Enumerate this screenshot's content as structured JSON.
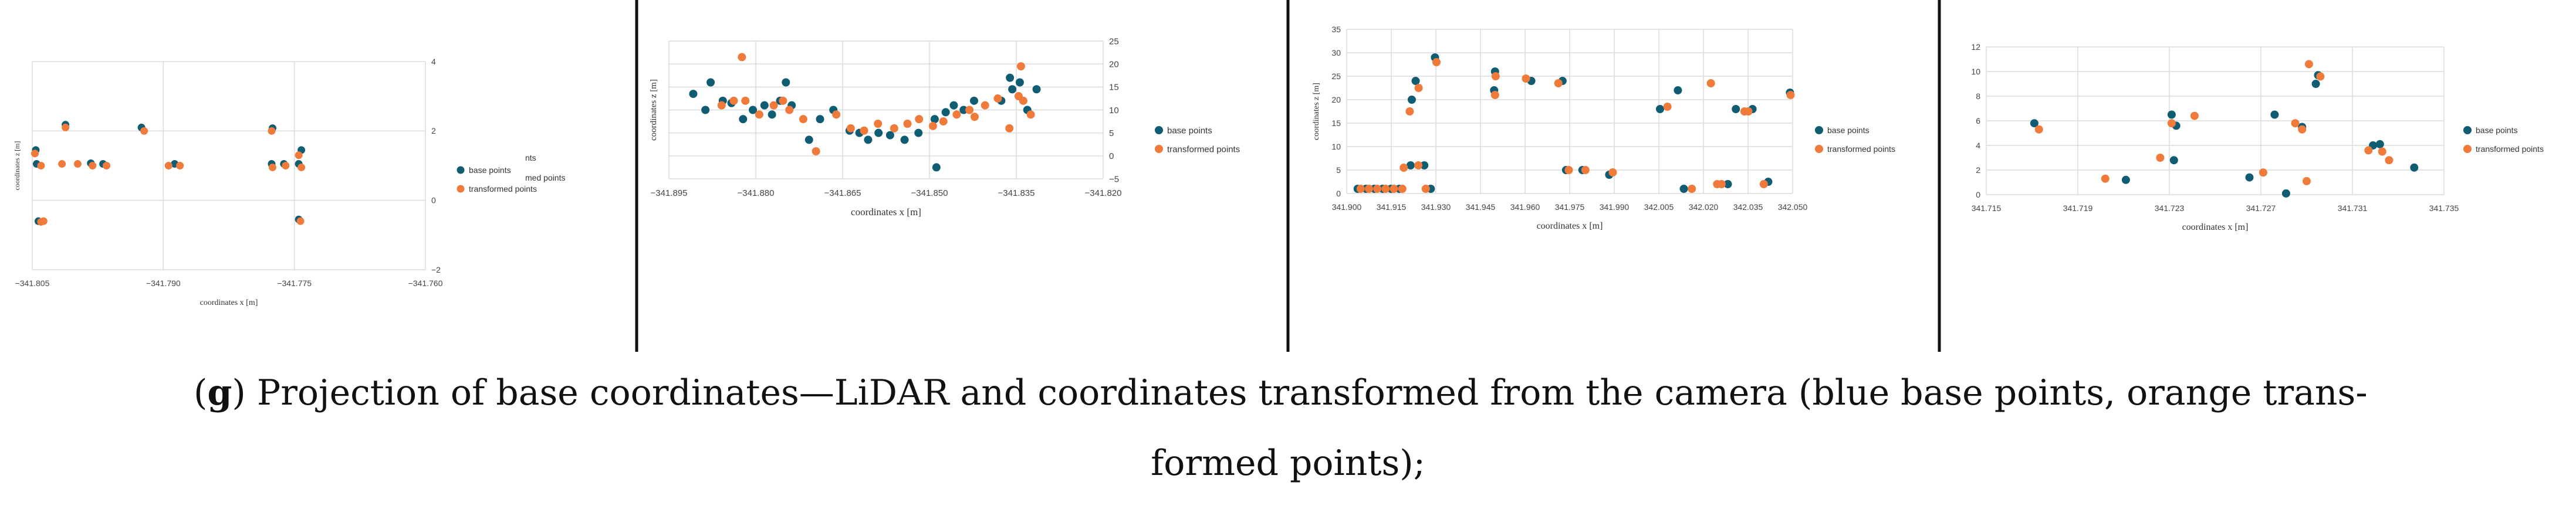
{
  "caption": {
    "letter": "g",
    "open_paren": "(",
    "line1_rest": ") Projection of base coordinates—LiDAR and coordinates transformed from the camera (blue base points, orange trans-",
    "line2": "formed points);"
  },
  "colors": {
    "base": "#0f5c73",
    "transformed": "#f07a3a",
    "grid": "#dcdcdc",
    "divider": "#111111"
  },
  "chart_data": [
    {
      "type": "scatter",
      "xlabel": "coordinates x [m]",
      "ylabel": "coordinates z [m]",
      "xlim": [
        -341.805,
        -341.76
      ],
      "ylim": [
        -2,
        4
      ],
      "x_ticks": [
        -341.805,
        -341.79,
        -341.775,
        -341.76
      ],
      "x_tick_labels": [
        "−341.805",
        "−341.790",
        "−341.775",
        "−341.760"
      ],
      "y_ticks": [
        -2,
        0,
        2,
        4
      ],
      "y_tick_labels": [
        "−2",
        "0",
        "2",
        "4"
      ],
      "y_axis_side": "right",
      "legend_extra": [
        "nts",
        "med points"
      ],
      "series": [
        {
          "name": "base points",
          "points": [
            [
              -341.8046,
              1.45
            ],
            [
              -341.8045,
              1.05
            ],
            [
              -341.8043,
              -0.6
            ],
            [
              -341.8012,
              2.18
            ],
            [
              -341.7983,
              1.07
            ],
            [
              -341.7969,
              1.05
            ],
            [
              -341.7925,
              2.1
            ],
            [
              -341.7887,
              1.05
            ],
            [
              -341.7775,
              2.08
            ],
            [
              -341.7776,
              1.05
            ],
            [
              -341.7762,
              1.05
            ],
            [
              -341.7742,
              1.45
            ],
            [
              -341.7745,
              1.05
            ],
            [
              -341.7745,
              -0.55
            ]
          ]
        },
        {
          "name": "transformed points",
          "points": [
            [
              -341.8047,
              1.35
            ],
            [
              -341.804,
              1.0
            ],
            [
              -341.804,
              -0.62
            ],
            [
              -341.8037,
              -0.6
            ],
            [
              -341.8016,
              1.05
            ],
            [
              -341.8012,
              2.1
            ],
            [
              -341.7998,
              1.05
            ],
            [
              -341.7981,
              1.0
            ],
            [
              -341.7965,
              1.0
            ],
            [
              -341.7922,
              2.0
            ],
            [
              -341.7894,
              1.0
            ],
            [
              -341.7881,
              1.0
            ],
            [
              -341.7776,
              2.0
            ],
            [
              -341.7775,
              0.95
            ],
            [
              -341.776,
              1.0
            ],
            [
              -341.7745,
              1.3
            ],
            [
              -341.7742,
              0.95
            ],
            [
              -341.7743,
              -0.6
            ]
          ]
        }
      ]
    },
    {
      "type": "scatter",
      "xlabel": "coordinates x [m]",
      "ylabel": "coordinates z [m]",
      "xlim": [
        -341.895,
        -341.82
      ],
      "ylim": [
        -5,
        25
      ],
      "x_ticks": [
        -341.895,
        -341.88,
        -341.865,
        -341.85,
        -341.835,
        -341.82
      ],
      "x_tick_labels": [
        "−341.895",
        "−341.880",
        "−341.865",
        "−341.850",
        "−341.835",
        "−341.820"
      ],
      "y_ticks": [
        -5,
        0,
        5,
        10,
        15,
        20,
        25
      ],
      "y_tick_labels": [
        "−5",
        "0",
        "5",
        "10",
        "15",
        "20",
        "25"
      ],
      "y_axis_side": "right",
      "series": [
        {
          "name": "base points",
          "points": [
            [
              -341.8908,
              13.5
            ],
            [
              -341.8887,
              10
            ],
            [
              -341.8878,
              16
            ],
            [
              -341.8857,
              12
            ],
            [
              -341.8842,
              11.5
            ],
            [
              -341.8822,
              8
            ],
            [
              -341.8805,
              10
            ],
            [
              -341.8785,
              11
            ],
            [
              -341.8772,
              9
            ],
            [
              -341.8758,
              12
            ],
            [
              -341.8748,
              16
            ],
            [
              -341.8738,
              11
            ],
            [
              -341.8708,
              3.5
            ],
            [
              -341.8689,
              8
            ],
            [
              -341.8666,
              10
            ],
            [
              -341.8638,
              5.5
            ],
            [
              -341.8621,
              5
            ],
            [
              -341.8606,
              3.5
            ],
            [
              -341.8588,
              5
            ],
            [
              -341.8568,
              4.5
            ],
            [
              -341.8543,
              3.5
            ],
            [
              -341.8519,
              5
            ],
            [
              -341.8491,
              8
            ],
            [
              -341.8472,
              9.5
            ],
            [
              -341.8488,
              -2.5
            ],
            [
              -341.8458,
              11
            ],
            [
              -341.8441,
              10
            ],
            [
              -341.8423,
              12
            ],
            [
              -341.8376,
              12
            ],
            [
              -341.8361,
              17
            ],
            [
              -341.8357,
              14.5
            ],
            [
              -341.8344,
              16
            ],
            [
              -341.8331,
              10
            ],
            [
              -341.8315,
              14.5
            ]
          ]
        },
        {
          "name": "transformed points",
          "points": [
            [
              -341.8859,
              11
            ],
            [
              -341.8838,
              12
            ],
            [
              -341.8824,
              21.5
            ],
            [
              -341.8818,
              12
            ],
            [
              -341.8794,
              9
            ],
            [
              -341.8769,
              11
            ],
            [
              -341.8753,
              12
            ],
            [
              -341.8742,
              10
            ],
            [
              -341.8718,
              8
            ],
            [
              -341.8696,
              1
            ],
            [
              -341.8661,
              9
            ],
            [
              -341.8636,
              6
            ],
            [
              -341.8613,
              5.5
            ],
            [
              -341.8589,
              7
            ],
            [
              -341.8561,
              6
            ],
            [
              -341.8538,
              7
            ],
            [
              -341.8518,
              8
            ],
            [
              -341.8494,
              6.5
            ],
            [
              -341.8476,
              7.5
            ],
            [
              -341.8453,
              9
            ],
            [
              -341.8431,
              10
            ],
            [
              -341.8422,
              8.5
            ],
            [
              -341.8404,
              11
            ],
            [
              -341.8382,
              12.5
            ],
            [
              -341.8362,
              6
            ],
            [
              -341.8346,
              13
            ],
            [
              -341.8342,
              19.5
            ],
            [
              -341.8338,
              12
            ],
            [
              -341.8325,
              9
            ]
          ]
        }
      ]
    },
    {
      "type": "scatter",
      "xlabel": "coordinates x [m]",
      "ylabel": "coordinates z [m]",
      "xlim": [
        341.9,
        342.05
      ],
      "ylim": [
        0,
        35
      ],
      "x_ticks": [
        341.9,
        341.915,
        341.93,
        341.945,
        341.96,
        341.975,
        341.99,
        342.005,
        342.02,
        342.035,
        342.05
      ],
      "x_tick_labels": [
        "341.900",
        "341.915",
        "341.930",
        "341.945",
        "341.960",
        "341.975",
        "341.990",
        "342.005",
        "342.020",
        "342.035",
        "342.050"
      ],
      "y_ticks": [
        0,
        5,
        10,
        15,
        20,
        25,
        30,
        35
      ],
      "y_tick_labels": [
        "0",
        "5",
        "10",
        "15",
        "20",
        "25",
        "30",
        "35"
      ],
      "y_axis_side": "left",
      "series": [
        {
          "name": "base points",
          "points": [
            [
              341.9037,
              1
            ],
            [
              341.9065,
              1
            ],
            [
              341.9093,
              1
            ],
            [
              341.9121,
              1
            ],
            [
              341.9149,
              1
            ],
            [
              341.9177,
              1
            ],
            [
              341.9219,
              20
            ],
            [
              341.9232,
              24
            ],
            [
              341.9261,
              6
            ],
            [
              341.9283,
              1
            ],
            [
              341.9297,
              29
            ],
            [
              341.9499,
              26
            ],
            [
              341.9496,
              22
            ],
            [
              341.9621,
              24
            ],
            [
              341.9726,
              24
            ],
            [
              341.9738,
              5
            ],
            [
              341.9883,
              4
            ],
            [
              342.0054,
              18
            ],
            [
              342.0114,
              22
            ],
            [
              342.0134,
              1
            ],
            [
              342.0282,
              2
            ],
            [
              342.0309,
              18
            ],
            [
              342.0365,
              18
            ],
            [
              342.0418,
              2.5
            ],
            [
              342.0491,
              21.5
            ],
            [
              341.9793,
              5
            ],
            [
              341.9215,
              6
            ]
          ]
        },
        {
          "name": "transformed points",
          "points": [
            [
              341.9047,
              1
            ],
            [
              341.9075,
              1
            ],
            [
              341.9103,
              1
            ],
            [
              341.9131,
              1
            ],
            [
              341.9159,
              1
            ],
            [
              341.9187,
              1
            ],
            [
              341.9212,
              17.5
            ],
            [
              341.9242,
              22.5
            ],
            [
              341.9192,
              5.5
            ],
            [
              341.9241,
              6
            ],
            [
              341.9266,
              1
            ],
            [
              341.9302,
              28
            ],
            [
              341.9501,
              25
            ],
            [
              341.9499,
              21
            ],
            [
              341.9603,
              24.5
            ],
            [
              341.9712,
              23.5
            ],
            [
              341.9747,
              5
            ],
            [
              341.9803,
              5
            ],
            [
              341.9895,
              4.5
            ],
            [
              342.0079,
              18.5
            ],
            [
              342.0161,
              1
            ],
            [
              342.0225,
              23.5
            ],
            [
              342.0246,
              2
            ],
            [
              342.0261,
              2
            ],
            [
              342.0338,
              17.5
            ],
            [
              342.0351,
              17.5
            ],
            [
              342.0403,
              2
            ],
            [
              342.0493,
              21
            ]
          ]
        }
      ]
    },
    {
      "type": "scatter",
      "xlabel": "coordinates x [m]",
      "ylabel": "",
      "xlim": [
        341.715,
        341.735
      ],
      "ylim": [
        0,
        12
      ],
      "x_ticks": [
        341.715,
        341.719,
        341.723,
        341.727,
        341.731,
        341.735
      ],
      "x_tick_labels": [
        "341.715",
        "341.719",
        "341.723",
        "341.727",
        "341.731",
        "341.735"
      ],
      "y_ticks": [
        0,
        2,
        4,
        6,
        8,
        10,
        12
      ],
      "y_tick_labels": [
        "0",
        "2",
        "4",
        "6",
        "8",
        "10",
        "12"
      ],
      "y_axis_side": "left",
      "series": [
        {
          "name": "base points",
          "points": [
            [
              341.7171,
              5.8
            ],
            [
              341.7211,
              1.2
            ],
            [
              341.7231,
              6.5
            ],
            [
              341.7232,
              2.8
            ],
            [
              341.7233,
              5.6
            ],
            [
              341.7265,
              1.4
            ],
            [
              341.7276,
              6.5
            ],
            [
              341.7281,
              0.1
            ],
            [
              341.7288,
              5.5
            ],
            [
              341.7295,
              9.7
            ],
            [
              341.7294,
              9
            ],
            [
              341.7319,
              4
            ],
            [
              341.7322,
              4.1
            ],
            [
              341.7337,
              2.2
            ]
          ]
        },
        {
          "name": "transformed points",
          "points": [
            [
              341.7173,
              5.3
            ],
            [
              341.7202,
              1.3
            ],
            [
              341.7226,
              3
            ],
            [
              341.7231,
              5.8
            ],
            [
              341.7241,
              6.4
            ],
            [
              341.7271,
              1.8
            ],
            [
              341.7285,
              5.8
            ],
            [
              341.7288,
              5.3
            ],
            [
              341.729,
              1.1
            ],
            [
              341.7291,
              10.6
            ],
            [
              341.7296,
              9.6
            ],
            [
              341.7317,
              3.6
            ],
            [
              341.7323,
              3.5
            ],
            [
              341.7326,
              2.8
            ]
          ]
        }
      ]
    }
  ]
}
